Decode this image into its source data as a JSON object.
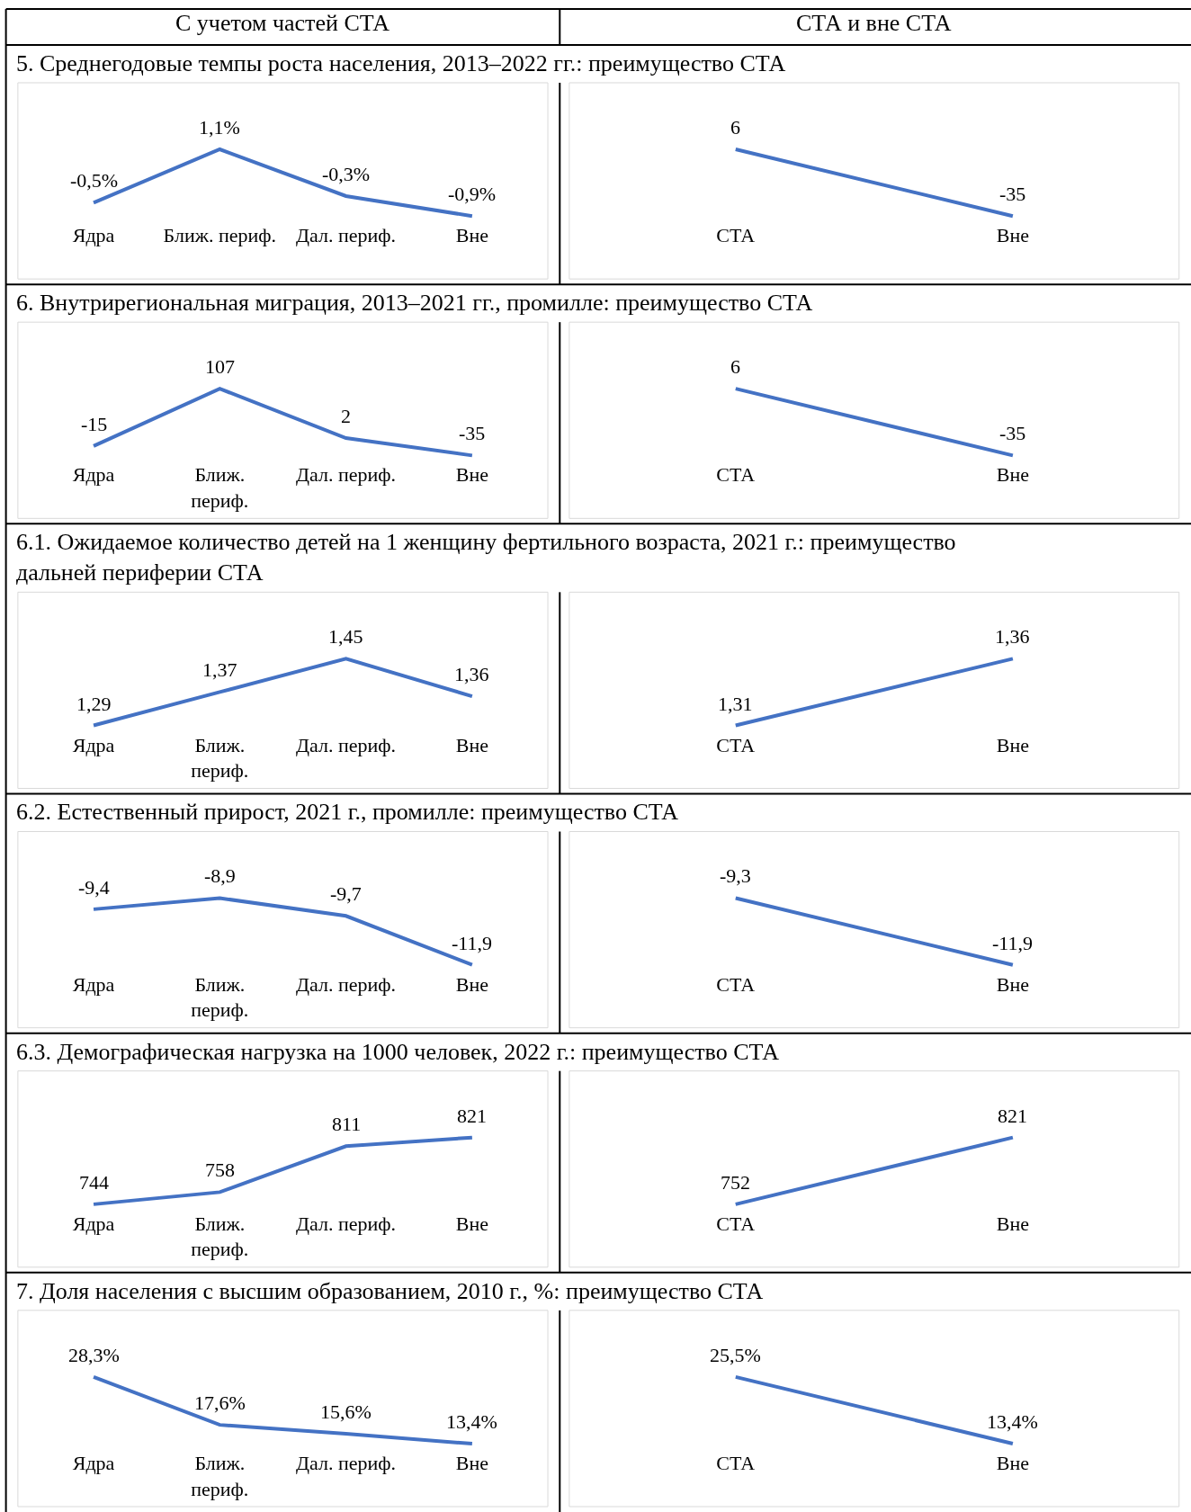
{
  "chart_data": [
    {
      "type": "line",
      "title": "5. Среднегодовые темпы роста населения, 2013–2022 гг.: преимущество СТА",
      "annotations": [
        "С учетом частей СТА"
      ],
      "categories": [
        "Ядра",
        "Ближ. периф.",
        "Дал. периф.",
        "Вне"
      ],
      "values": [
        -0.5,
        1.1,
        -0.3,
        -0.9
      ],
      "value_labels": [
        "-0,5%",
        "1,1%",
        "-0,3%",
        "-0,9%"
      ],
      "color": "#4472c4"
    },
    {
      "type": "line",
      "annotations": [
        "СТА и вне СТА"
      ],
      "categories": [
        "СТА",
        "Вне"
      ],
      "values": [
        6,
        -35
      ],
      "data_labels": true,
      "color": "#4472c4"
    },
    {
      "type": "line",
      "title": "6. Внутрирегиональная миграция, 2013–2021 гг., промилле: преимущество СТА",
      "categories": [
        "Ядра",
        "Ближ.\nпериф.",
        "Дал. периф.",
        "Вне"
      ],
      "values": [
        -15,
        107,
        2,
        -35
      ],
      "data_labels": true,
      "color": "#4472c4"
    },
    {
      "type": "line",
      "categories": [
        "СТА",
        "Вне"
      ],
      "values": [
        6,
        -35
      ],
      "data_labels": true,
      "color": "#4472c4"
    },
    {
      "type": "line",
      "title": "6.1. Ожидаемое количество детей на 1 женщину фертильного возраста, 2021 г.: преимущество\nдальней периферии СТА",
      "categories": [
        "Ядра",
        "Ближ.\nпериф.",
        "Дал. периф.",
        "Вне"
      ],
      "values": [
        1.29,
        1.37,
        1.45,
        1.36
      ],
      "value_labels": [
        "1,29",
        "1,37",
        "1,45",
        "1,36"
      ],
      "color": "#4472c4"
    },
    {
      "type": "line",
      "categories": [
        "СТА",
        "Вне"
      ],
      "values": [
        1.31,
        1.36
      ],
      "value_labels": [
        "1,31",
        "1,36"
      ],
      "color": "#4472c4"
    },
    {
      "type": "line",
      "title": "6.2. Естественный прирост, 2021 г., промилле: преимущество СТА",
      "categories": [
        "Ядра",
        "Ближ.\nпериф.",
        "Дал. периф.",
        "Вне"
      ],
      "values": [
        -9.4,
        -8.9,
        -9.7,
        -11.9
      ],
      "value_labels": [
        "-9,4",
        "-8,9",
        "-9,7",
        "-11,9"
      ],
      "color": "#4472c4"
    },
    {
      "type": "line",
      "categories": [
        "СТА",
        "Вне"
      ],
      "values": [
        -9.3,
        -11.9
      ],
      "value_labels": [
        "-9,3",
        "-11,9"
      ],
      "color": "#4472c4"
    },
    {
      "type": "line",
      "title": "6.3. Демографическая нагрузка на 1000 человек, 2022 г.: преимущество СТА",
      "categories": [
        "Ядра",
        "Ближ.\nпериф.",
        "Дал. периф.",
        "Вне"
      ],
      "values": [
        744,
        758,
        811,
        821
      ],
      "data_labels": true,
      "color": "#4472c4"
    },
    {
      "type": "line",
      "categories": [
        "СТА",
        "Вне"
      ],
      "values": [
        752,
        821
      ],
      "data_labels": true,
      "color": "#4472c4"
    },
    {
      "type": "line",
      "title": "7. Доля населения с высшим образованием, 2010 г., %: преимущество СТА",
      "categories": [
        "Ядра",
        "Ближ.\nпериф.",
        "Дал. периф.",
        "Вне"
      ],
      "values": [
        28.3,
        17.6,
        15.6,
        13.4
      ],
      "value_labels": [
        "28,3%",
        "17,6%",
        "15,6%",
        "13,4%"
      ],
      "color": "#4472c4"
    },
    {
      "type": "line",
      "categories": [
        "СТА",
        "Вне"
      ],
      "values": [
        25.5,
        13.4
      ],
      "value_labels": [
        "25,5%",
        "13,4%"
      ],
      "color": "#4472c4"
    }
  ]
}
